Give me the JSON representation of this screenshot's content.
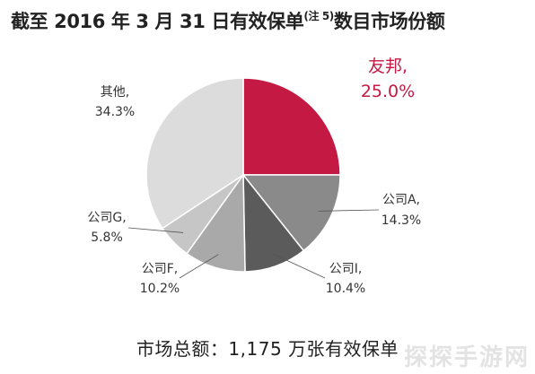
{
  "title": {
    "main": "截至 2016 年 3 月 31 日有效保单",
    "note": "(注 5)",
    "suffix": "数目市场份额"
  },
  "footer": "市场总额：1,175 万张有效保单",
  "watermark": "探探手游网",
  "chart_data": {
    "type": "pie",
    "slices": [
      {
        "name": "友邦",
        "value": 25.0,
        "label": "25.0%",
        "color": "#c41942"
      },
      {
        "name": "公司A",
        "value": 14.3,
        "label": "14.3%",
        "color": "#8a8a8a"
      },
      {
        "name": "公司I",
        "value": 10.4,
        "label": "10.4%",
        "color": "#5b5b5b"
      },
      {
        "name": "公司F",
        "value": 10.2,
        "label": "10.2%",
        "color": "#a9a9a9"
      },
      {
        "name": "公司G",
        "value": 5.8,
        "label": "5.8%",
        "color": "#c6c6c6"
      },
      {
        "name": "其他",
        "value": 34.3,
        "label": "34.3%",
        "color": "#dcdcdc"
      }
    ],
    "start": "12 o'clock",
    "direction": "clockwise"
  }
}
